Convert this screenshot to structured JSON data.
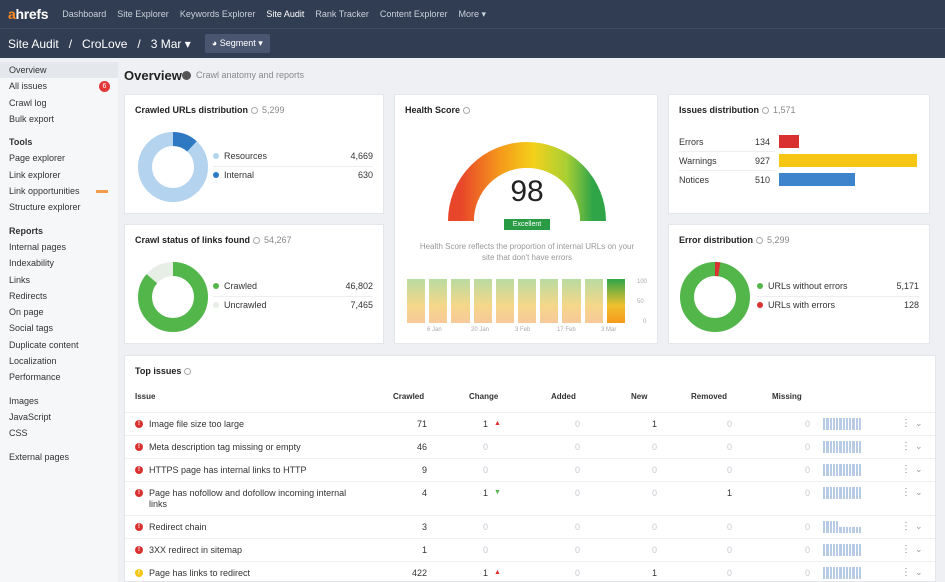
{
  "app": {
    "logo_prefix": "a",
    "logo_rest": "hrefs"
  },
  "nav": [
    "Dashboard",
    "Site Explorer",
    "Keywords Explorer",
    "Site Audit",
    "Rank Tracker",
    "Content Explorer",
    "More ▾"
  ],
  "breadcrumb": {
    "tool": "Site Audit",
    "sep1": "/",
    "project": "CroLove",
    "sep2": "/",
    "date": "3 Mar ▾",
    "segment": "◕ Segment ▾"
  },
  "sidebar": {
    "top": [
      "Overview",
      "All issues",
      "Crawl log",
      "Bulk export"
    ],
    "all_issues_badge": "6",
    "tools_head": "Tools",
    "tools": [
      "Page explorer",
      "Link explorer",
      "Link opportunities",
      "Structure explorer"
    ],
    "reports_head": "Reports",
    "reports": [
      "Internal pages",
      "Indexability",
      "Links",
      "Redirects",
      "On page",
      "Social tags",
      "Duplicate content",
      "Localization",
      "Performance"
    ],
    "resources": [
      "Images",
      "JavaScript",
      "CSS"
    ],
    "external": [
      "External pages"
    ]
  },
  "overview": {
    "title": "Overview",
    "subtitle": "Crawl anatomy and reports"
  },
  "crawled_urls": {
    "title": "Crawled URLs distribution",
    "count": "5,299",
    "items": [
      {
        "label": "Resources",
        "value": "4,669",
        "color": "#b3d3ef"
      },
      {
        "label": "Internal",
        "value": "630",
        "color": "#2f79c3"
      }
    ]
  },
  "crawl_status": {
    "title": "Crawl status of links found",
    "count": "54,267",
    "items": [
      {
        "label": "Crawled",
        "value": "46,802",
        "color": "#52b64a"
      },
      {
        "label": "Uncrawled",
        "value": "7,465",
        "color": "#e6eee6"
      }
    ]
  },
  "health": {
    "title": "Health Score",
    "score": "98",
    "badge": "Excellent",
    "desc": "Health Score reflects the proportion of internal URLs on your site that don't have errors",
    "yticks": [
      "100",
      "50",
      "0"
    ],
    "xticks": [
      "6 Jan",
      "20 Jan",
      "3 Feb",
      "17 Feb",
      "3 Mar"
    ]
  },
  "issues_dist": {
    "title": "Issues distribution",
    "count": "1,571",
    "items": [
      {
        "label": "Errors",
        "value": "134",
        "color": "#d9312f"
      },
      {
        "label": "Warnings",
        "value": "927",
        "color": "#f5c613"
      },
      {
        "label": "Notices",
        "value": "510",
        "color": "#3d84cc"
      }
    ]
  },
  "error_dist": {
    "title": "Error distribution",
    "count": "5,299",
    "items": [
      {
        "label": "URLs without errors",
        "value": "5,171",
        "color": "#52b64a"
      },
      {
        "label": "URLs with errors",
        "value": "128",
        "color": "#d9312f"
      }
    ]
  },
  "top_issues": {
    "title": "Top issues",
    "headers": {
      "issue": "Issue",
      "crawled": "Crawled",
      "change": "Change",
      "added": "Added",
      "new": "New",
      "removed": "Removed",
      "missing": "Missing"
    },
    "rows": [
      {
        "issue": "Image file size too large",
        "type": "error",
        "crawled": "71",
        "change": "1",
        "dir": "up",
        "added": "0",
        "new": "1",
        "removed": "0",
        "missing": "0"
      },
      {
        "issue": "Meta description tag missing or empty",
        "type": "error",
        "crawled": "46",
        "change": "0",
        "dir": "",
        "added": "0",
        "new": "0",
        "removed": "0",
        "missing": "0"
      },
      {
        "issue": "HTTPS page has internal links to HTTP",
        "type": "error",
        "crawled": "9",
        "change": "0",
        "dir": "",
        "added": "0",
        "new": "0",
        "removed": "0",
        "missing": "0"
      },
      {
        "issue": "Page has nofollow and dofollow incoming internal links",
        "type": "error",
        "crawled": "4",
        "change": "1",
        "dir": "down",
        "added": "0",
        "new": "0",
        "removed": "1",
        "missing": "0"
      },
      {
        "issue": "Redirect chain",
        "type": "error",
        "crawled": "3",
        "change": "0",
        "dir": "",
        "added": "0",
        "new": "0",
        "removed": "0",
        "missing": "0"
      },
      {
        "issue": "3XX redirect in sitemap",
        "type": "error",
        "crawled": "1",
        "change": "0",
        "dir": "",
        "added": "0",
        "new": "0",
        "removed": "0",
        "missing": "0"
      },
      {
        "issue": "Page has links to redirect",
        "type": "warning",
        "crawled": "422",
        "change": "1",
        "dir": "up",
        "added": "0",
        "new": "1",
        "removed": "0",
        "missing": "0"
      }
    ]
  }
}
